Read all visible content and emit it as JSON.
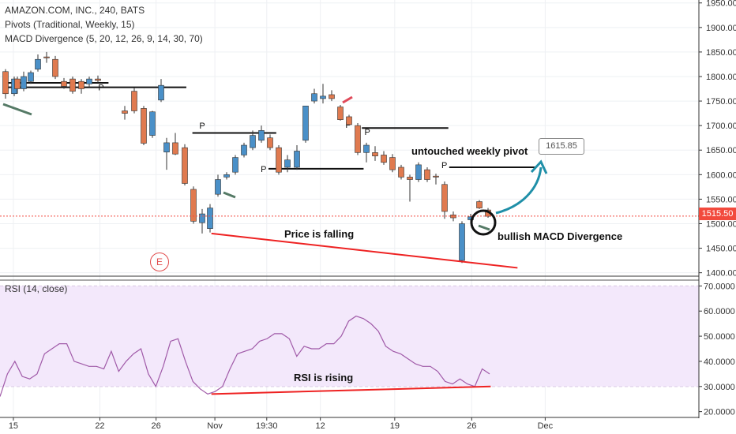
{
  "legend": {
    "symbol": "AMAZON.COM, INC., 240, BATS",
    "pivots": "Pivots (Traditional, Weekly, 15)",
    "macd": "MACD Divergence (5, 20, 12, 26, 9, 14, 30, 70)"
  },
  "rsi_title": "RSI (14, close)",
  "last_price": "1515.50",
  "target_label": "1615.85",
  "event_badge": "E",
  "annotations": {
    "untouched_pivot": "untouched weekly pivot",
    "price_falling": "Price is falling",
    "bullish_macd": "bullish MACD Divergence",
    "rsi_rising": "RSI is rising"
  },
  "pivot_marker": "P",
  "colors": {
    "up_candle": "#4a90c8",
    "down_candle": "#e07a4f",
    "price_line": "#f24a3d",
    "rsi_fill": "#f3e8fb",
    "rsi_line": "#a05aa8",
    "arrow": "#1f8fa8",
    "red_line": "#ee2222",
    "pivot_line": "#111111",
    "macd_mark_green": "#557a66",
    "macd_mark_red": "#e04a5a"
  },
  "chart_data": {
    "type": "candlestick",
    "price_axis": {
      "ticks": [
        "1950.00",
        "1900.00",
        "1850.00",
        "1800.00",
        "1750.00",
        "1700.00",
        "1650.00",
        "1600.00",
        "1550.00",
        "1500.00",
        "1450.00",
        "1400.00"
      ],
      "ylim": [
        1393,
        1956
      ]
    },
    "rsi_axis": {
      "ticks": [
        "70.0000",
        "60.0000",
        "50.0000",
        "40.0000",
        "30.0000",
        "20.0000"
      ],
      "ylim": [
        18,
        72
      ],
      "band": [
        30,
        70
      ]
    },
    "x_ticks": [
      {
        "label": "15",
        "i": 1
      },
      {
        "label": "22",
        "i": 11
      },
      {
        "label": "26",
        "i": 17.5
      },
      {
        "label": "Nov",
        "i": 24.3
      },
      {
        "label": "19:30",
        "i": 30.3
      },
      {
        "label": "12",
        "i": 36.5
      },
      {
        "label": "19",
        "i": 45.1
      },
      {
        "label": "26",
        "i": 54
      },
      {
        "label": "Dec",
        "i": 62.5
      }
    ],
    "candles": [
      {
        "o": 1810,
        "h": 1815,
        "l": 1755,
        "c": 1765
      },
      {
        "o": 1765,
        "h": 1800,
        "l": 1760,
        "c": 1795
      },
      {
        "o": 1795,
        "h": 1800,
        "l": 1765,
        "c": 1775
      },
      {
        "o": 1775,
        "h": 1810,
        "l": 1770,
        "c": 1800
      },
      {
        "o": 1790,
        "h": 1812,
        "l": 1785,
        "c": 1808
      },
      {
        "o": 1815,
        "h": 1845,
        "l": 1810,
        "c": 1835
      },
      {
        "o": 1840,
        "h": 1850,
        "l": 1828,
        "c": 1838
      },
      {
        "o": 1835,
        "h": 1842,
        "l": 1795,
        "c": 1800
      },
      {
        "o": 1790,
        "h": 1797,
        "l": 1775,
        "c": 1780
      },
      {
        "o": 1795,
        "h": 1800,
        "l": 1765,
        "c": 1770
      },
      {
        "o": 1790,
        "h": 1795,
        "l": 1765,
        "c": 1775
      },
      {
        "o": 1785,
        "h": 1800,
        "l": 1778,
        "c": 1795
      },
      {
        "o": 1795,
        "h": 1802,
        "l": 1788,
        "c": 1792
      },
      {
        "o": 1730,
        "h": 1740,
        "l": 1712,
        "c": 1725
      },
      {
        "o": 1770,
        "h": 1777,
        "l": 1725,
        "c": 1730
      },
      {
        "o": 1735,
        "h": 1740,
        "l": 1660,
        "c": 1664
      },
      {
        "o": 1680,
        "h": 1730,
        "l": 1675,
        "c": 1728
      },
      {
        "o": 1752,
        "h": 1795,
        "l": 1748,
        "c": 1782
      },
      {
        "o": 1646,
        "h": 1675,
        "l": 1610,
        "c": 1665
      },
      {
        "o": 1665,
        "h": 1685,
        "l": 1640,
        "c": 1642
      },
      {
        "o": 1655,
        "h": 1662,
        "l": 1578,
        "c": 1582
      },
      {
        "o": 1570,
        "h": 1576,
        "l": 1500,
        "c": 1505
      },
      {
        "o": 1502,
        "h": 1530,
        "l": 1480,
        "c": 1520
      },
      {
        "o": 1490,
        "h": 1540,
        "l": 1482,
        "c": 1532
      },
      {
        "o": 1560,
        "h": 1600,
        "l": 1555,
        "c": 1590
      },
      {
        "o": 1595,
        "h": 1605,
        "l": 1590,
        "c": 1600
      },
      {
        "o": 1605,
        "h": 1640,
        "l": 1600,
        "c": 1635
      },
      {
        "o": 1640,
        "h": 1665,
        "l": 1635,
        "c": 1660
      },
      {
        "o": 1655,
        "h": 1690,
        "l": 1650,
        "c": 1680
      },
      {
        "o": 1670,
        "h": 1700,
        "l": 1665,
        "c": 1690
      },
      {
        "o": 1675,
        "h": 1682,
        "l": 1650,
        "c": 1655
      },
      {
        "o": 1655,
        "h": 1660,
        "l": 1600,
        "c": 1605
      },
      {
        "o": 1615,
        "h": 1640,
        "l": 1605,
        "c": 1630
      },
      {
        "o": 1615,
        "h": 1660,
        "l": 1610,
        "c": 1648
      },
      {
        "o": 1670,
        "h": 1740,
        "l": 1665,
        "c": 1740
      },
      {
        "o": 1750,
        "h": 1775,
        "l": 1745,
        "c": 1765
      },
      {
        "o": 1755,
        "h": 1785,
        "l": 1745,
        "c": 1760
      },
      {
        "o": 1763,
        "h": 1772,
        "l": 1750,
        "c": 1755
      },
      {
        "o": 1738,
        "h": 1742,
        "l": 1710,
        "c": 1712
      },
      {
        "o": 1718,
        "h": 1722,
        "l": 1700,
        "c": 1702
      },
      {
        "o": 1700,
        "h": 1705,
        "l": 1640,
        "c": 1645
      },
      {
        "o": 1645,
        "h": 1665,
        "l": 1625,
        "c": 1660
      },
      {
        "o": 1645,
        "h": 1658,
        "l": 1628,
        "c": 1638
      },
      {
        "o": 1640,
        "h": 1648,
        "l": 1620,
        "c": 1625
      },
      {
        "o": 1635,
        "h": 1642,
        "l": 1605,
        "c": 1610
      },
      {
        "o": 1615,
        "h": 1620,
        "l": 1590,
        "c": 1595
      },
      {
        "o": 1595,
        "h": 1600,
        "l": 1545,
        "c": 1590
      },
      {
        "o": 1590,
        "h": 1625,
        "l": 1585,
        "c": 1620
      },
      {
        "o": 1610,
        "h": 1615,
        "l": 1585,
        "c": 1590
      },
      {
        "o": 1597,
        "h": 1602,
        "l": 1580,
        "c": 1595
      },
      {
        "o": 1580,
        "h": 1586,
        "l": 1510,
        "c": 1525
      },
      {
        "o": 1518,
        "h": 1525,
        "l": 1505,
        "c": 1512
      },
      {
        "o": 1425,
        "h": 1505,
        "l": 1420,
        "c": 1500
      },
      {
        "o": 1508,
        "h": 1520,
        "l": 1500,
        "c": 1514
      },
      {
        "o": 1545,
        "h": 1548,
        "l": 1530,
        "c": 1532
      },
      {
        "o": 1528,
        "h": 1532,
        "l": 1512,
        "c": 1515
      }
    ],
    "candle_x_offset": [
      3,
      14,
      18,
      26,
      35,
      44,
      55,
      66,
      77,
      88,
      99,
      109,
      120,
      154,
      166,
      178,
      189,
      200,
      207,
      218,
      230,
      241,
      252,
      262,
      272,
      283,
      294,
      305,
      316,
      327,
      338,
      349,
      360,
      372,
      383,
      394,
      405,
      416,
      427,
      438,
      449,
      460,
      471,
      482,
      493,
      504,
      515,
      526,
      537,
      548,
      559,
      570,
      581,
      592,
      603,
      614
    ],
    "pivot_lines": [
      {
        "y": 1778,
        "i0": 0,
        "i1": 21
      },
      {
        "y": 1787,
        "i0": 0,
        "i1": 12
      },
      {
        "y": 1685,
        "i0": 21.7,
        "i1": 31.4
      },
      {
        "y": 1612,
        "i0": 30.5,
        "i1": 41.5
      },
      {
        "y": 1695,
        "i0": 41.3,
        "i1": 51.3
      },
      {
        "y": 1615,
        "i0": 51.4,
        "i1": 61.5
      }
    ],
    "red_price_trend": {
      "from": {
        "i": 23.9,
        "y": 1480
      },
      "to": {
        "i": 59.3,
        "y": 1410
      }
    },
    "rsi_values": [
      26,
      35,
      40,
      34,
      33,
      35,
      43,
      45,
      47,
      47,
      40,
      39,
      38,
      38,
      37,
      44,
      36,
      40,
      43,
      45,
      35,
      30,
      38,
      48,
      49,
      40,
      32,
      29,
      27,
      28,
      30,
      37,
      43,
      44,
      45,
      48,
      49,
      51,
      51,
      49,
      42,
      46,
      45,
      45,
      47,
      47,
      50,
      56,
      58,
      57,
      55,
      52,
      46,
      44,
      43,
      41,
      39,
      38,
      38,
      36,
      32,
      31,
      33,
      31,
      30,
      37,
      35
    ],
    "rsi_trend": {
      "from": {
        "i": 23.9,
        "y": 27
      },
      "to": {
        "i": 56.2,
        "y": 30
      }
    }
  }
}
